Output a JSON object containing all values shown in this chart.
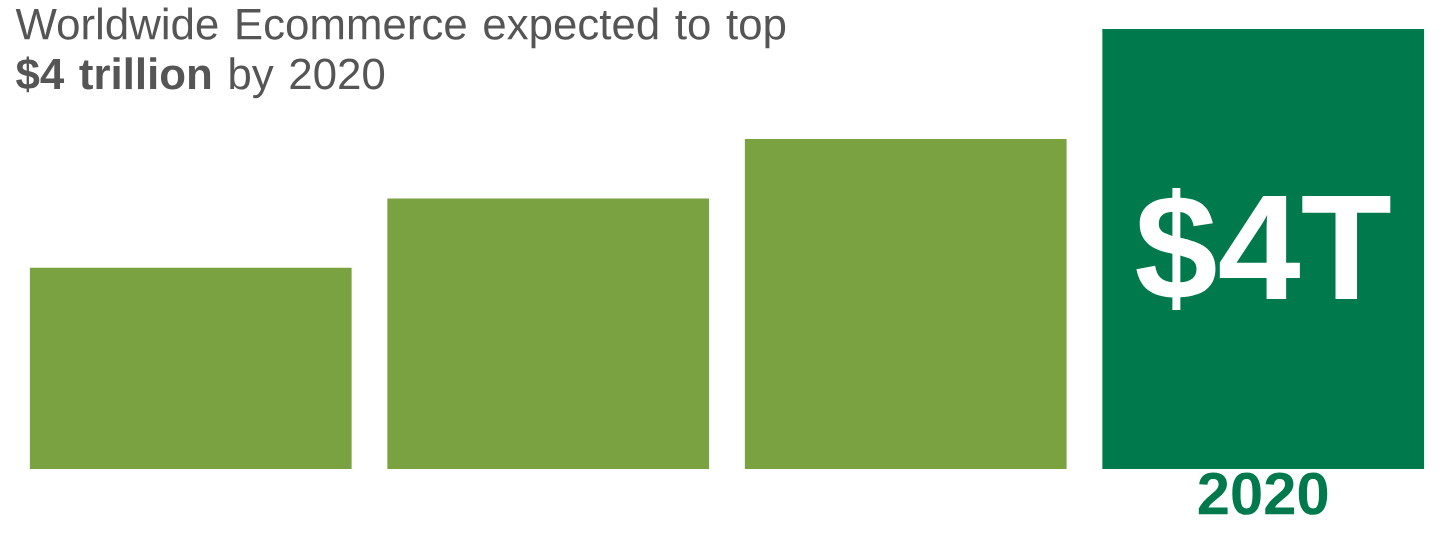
{
  "chart_data": {
    "type": "bar",
    "title": "Worldwide Ecommerce expected to top **$4 trillion** by 2020",
    "categories": [
      null,
      null,
      null,
      null
    ],
    "annotations": [
      "2020"
    ],
    "values": [
      1.83,
      2.46,
      3.0,
      4
    ],
    "colors": [
      "#7aa241",
      "#7aa241",
      "#7aa241",
      "#007a4d"
    ],
    "value_labels": [
      null,
      null,
      null,
      "$4T"
    ]
  }
}
